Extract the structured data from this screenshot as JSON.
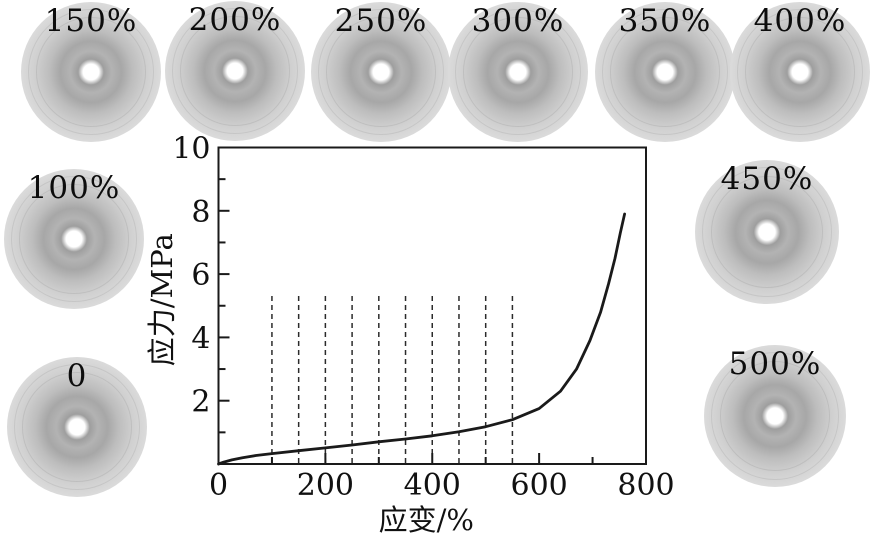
{
  "patterns": [
    {
      "label": "150%"
    },
    {
      "label": "200%"
    },
    {
      "label": "250%"
    },
    {
      "label": "300%"
    },
    {
      "label": "350%"
    },
    {
      "label": "400%"
    },
    {
      "label": "100%"
    },
    {
      "label": "450%"
    },
    {
      "label": "0"
    },
    {
      "label": "500%"
    }
  ],
  "chart_data": {
    "type": "line",
    "title": "",
    "xlabel": "应变/%",
    "ylabel": "应力/MPa",
    "xlim": [
      0,
      800
    ],
    "ylim": [
      0,
      10
    ],
    "grid": false,
    "legend_position": "none",
    "line_color": "#1a1a1a",
    "x_ticks": {
      "major": [
        0,
        200,
        400,
        600,
        800
      ],
      "minor": [
        100,
        300,
        500,
        700
      ],
      "labels": [
        [
          0,
          "0"
        ],
        [
          200,
          "200"
        ],
        [
          400,
          "400"
        ],
        [
          600,
          "600"
        ],
        [
          800,
          "800"
        ]
      ]
    },
    "y_ticks": {
      "major": [
        0,
        2,
        4,
        6,
        8,
        10
      ],
      "minor": [
        1,
        3,
        5,
        7,
        9
      ],
      "labels": [
        [
          2,
          "2"
        ],
        [
          4,
          "4"
        ],
        [
          6,
          "6"
        ],
        [
          8,
          "8"
        ],
        [
          10,
          "10"
        ]
      ]
    },
    "series": [
      {
        "name": "stress-strain-curve",
        "points": [
          [
            0,
            0
          ],
          [
            10,
            0.06
          ],
          [
            25,
            0.13
          ],
          [
            45,
            0.2
          ],
          [
            70,
            0.27
          ],
          [
            100,
            0.33
          ],
          [
            150,
            0.42
          ],
          [
            200,
            0.51
          ],
          [
            250,
            0.6
          ],
          [
            300,
            0.7
          ],
          [
            350,
            0.79
          ],
          [
            400,
            0.89
          ],
          [
            450,
            1.02
          ],
          [
            500,
            1.18
          ],
          [
            550,
            1.4
          ],
          [
            600,
            1.75
          ],
          [
            640,
            2.3
          ],
          [
            670,
            3.0
          ],
          [
            695,
            3.9
          ],
          [
            715,
            4.8
          ],
          [
            730,
            5.7
          ],
          [
            742,
            6.5
          ],
          [
            752,
            7.3
          ],
          [
            760,
            7.9
          ]
        ]
      }
    ],
    "annotations": {
      "dashed_marker_strains": [
        100,
        150,
        200,
        250,
        300,
        350,
        400,
        450,
        500,
        550
      ],
      "dashed_marker_top_stress": 5.4
    }
  }
}
